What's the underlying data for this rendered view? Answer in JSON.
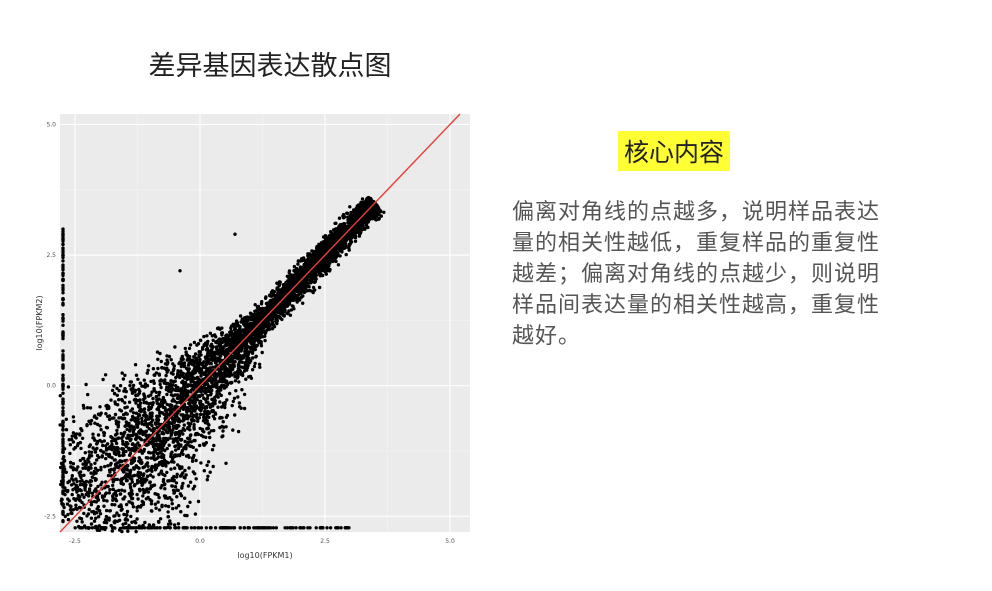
{
  "slide": {
    "title": "差异基因表达散点图",
    "heading": "核心内容",
    "body": "偏离对角线的点越多，说明样品表达量的相关性越低，重复样品的重复性越差；偏离对角线的点越少，则说明样品间表达量的相关性越高，重复性越好。"
  },
  "chart_data": {
    "type": "scatter",
    "xlabel": "log10(FPKM1)",
    "ylabel": "log10(FPKM2)",
    "xlim": [
      -2.8,
      5.4
    ],
    "ylim": [
      -2.8,
      5.2
    ],
    "x_ticks": [
      -2.5,
      0.0,
      2.5,
      5.0
    ],
    "x_tick_labels": [
      "-2.5",
      "0.0",
      "2.5",
      "5.0"
    ],
    "y_ticks": [
      -2.5,
      0.0,
      2.5,
      5.0
    ],
    "y_tick_labels": [
      "-2.5",
      "0.0",
      "2.5",
      "5.0"
    ],
    "grid": true,
    "background": "#ebebeb",
    "point_color": "#000000",
    "reference_line": {
      "type": "diagonal",
      "slope": 1,
      "intercept": 0,
      "color": "#e8403a"
    },
    "points_note_free": true,
    "outliers": [
      [
        0.7,
        2.9
      ],
      [
        -0.4,
        2.2
      ]
    ]
  }
}
